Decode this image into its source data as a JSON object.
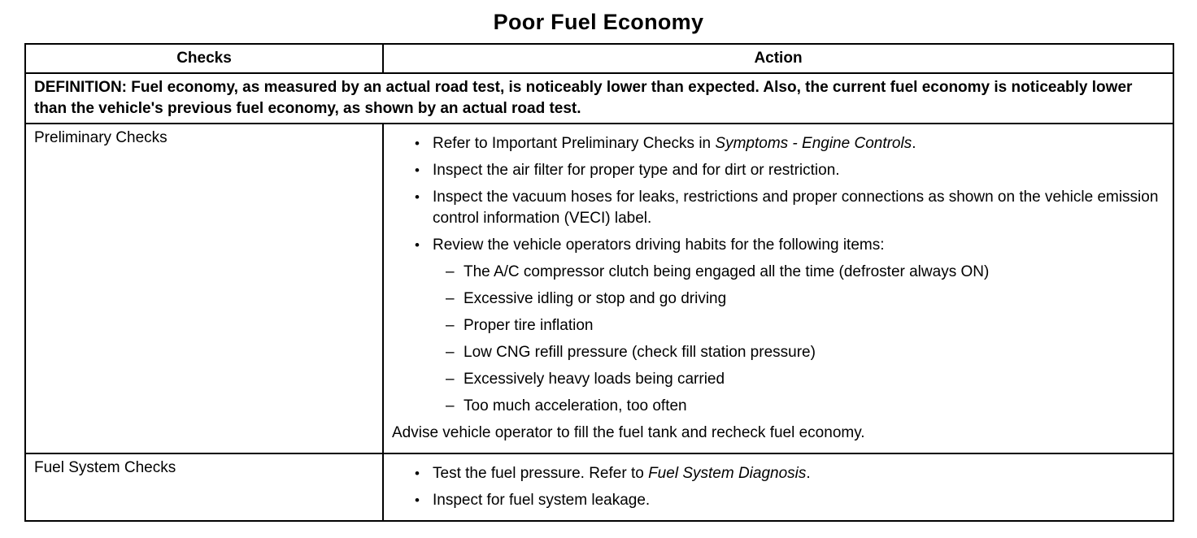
{
  "title": "Poor Fuel Economy",
  "markers": {
    "bullet": "•",
    "dash": "–"
  },
  "table": {
    "headers": {
      "checks": "Checks",
      "action": "Action"
    },
    "definition": "DEFINITION: Fuel economy, as measured by an actual road test, is noticeably lower than expected. Also, the current fuel economy is noticeably lower than the vehicle's previous fuel economy, as shown by an actual road test.",
    "rows": [
      {
        "checks": "Preliminary Checks",
        "bullets": [
          {
            "pre": "Refer to Important Preliminary Checks in ",
            "italic": "Symptoms - Engine Controls",
            "post": "."
          },
          {
            "pre": "Inspect the air filter for proper type and for dirt or restriction.",
            "italic": "",
            "post": ""
          },
          {
            "pre": "Inspect the vacuum hoses for leaks, restrictions and proper connections as shown on the vehicle emission control information (VECI) label.",
            "italic": "",
            "post": ""
          },
          {
            "pre": "Review the vehicle operators driving habits for the following items:",
            "italic": "",
            "post": ""
          }
        ],
        "sub_items": [
          "The A/C compressor clutch being engaged all the time (defroster always ON)",
          "Excessive idling or stop and go driving",
          "Proper tire inflation",
          "Low CNG refill pressure (check fill station pressure)",
          "Excessively heavy loads being carried",
          "Too much acceleration, too often"
        ],
        "footer": "Advise vehicle operator to fill the fuel tank and recheck fuel economy."
      },
      {
        "checks": "Fuel System Checks",
        "bullets": [
          {
            "pre": "Test the fuel pressure. Refer to ",
            "italic": "Fuel System Diagnosis",
            "post": "."
          },
          {
            "pre": "Inspect for fuel system leakage.",
            "italic": "",
            "post": ""
          }
        ]
      }
    ]
  }
}
